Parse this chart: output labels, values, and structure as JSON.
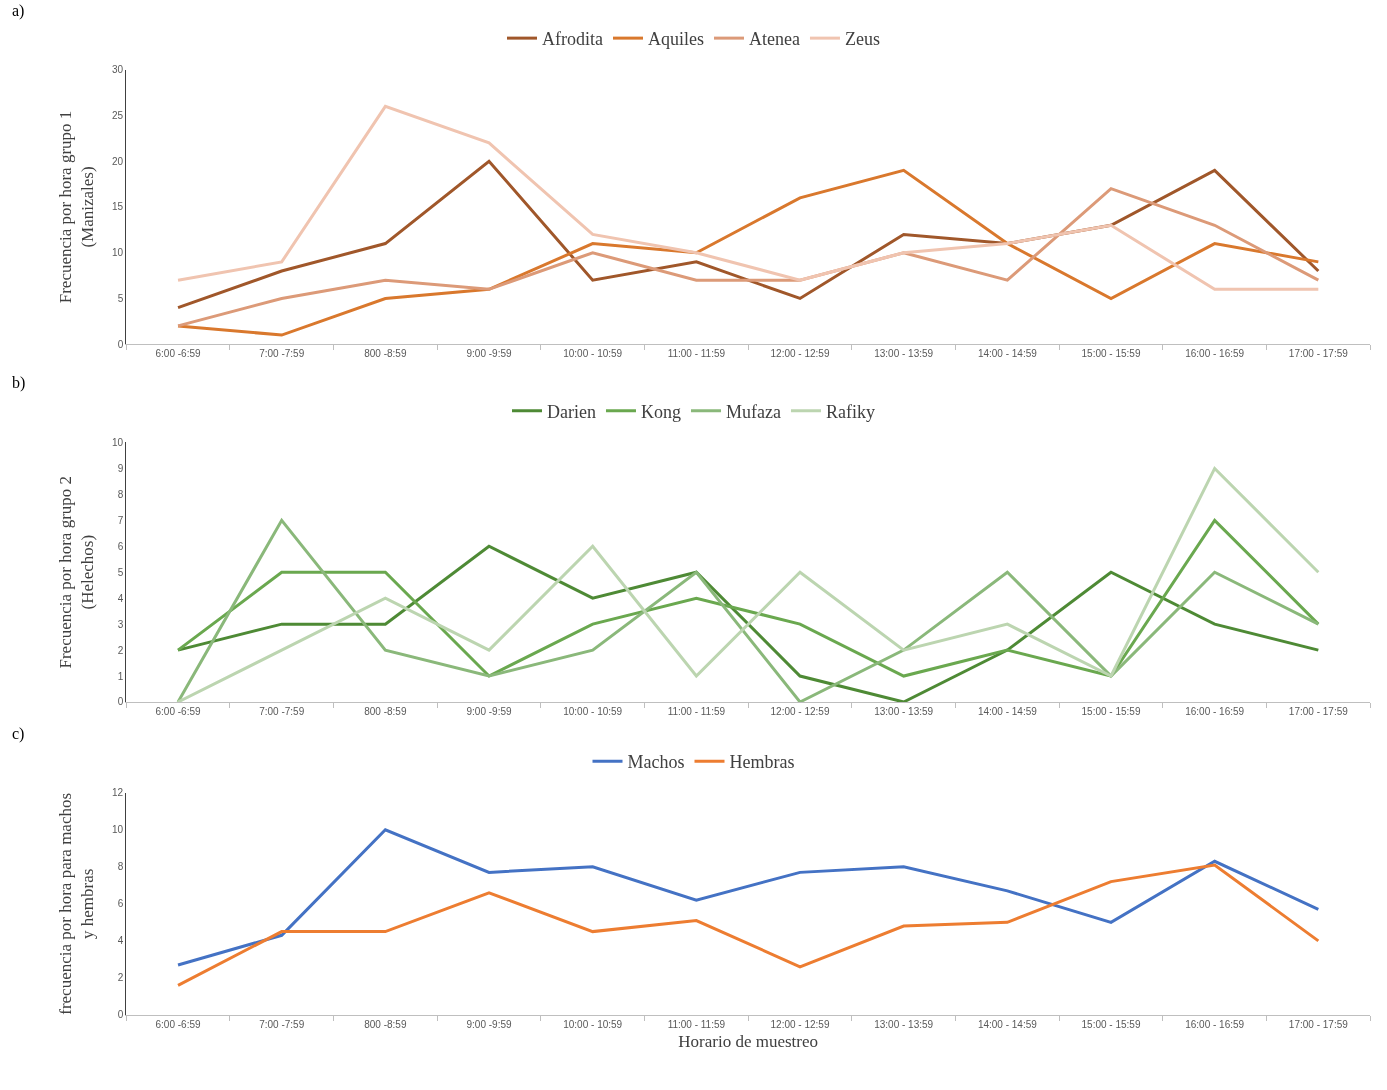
{
  "chart_data": [
    {
      "type": "line",
      "title": "a)",
      "ylabel": "Frecuencia por hora grupo 1\n(Manizales)",
      "legend": "top",
      "grid": false,
      "categories": [
        "6:00 -6:59",
        "7:00 -7:59",
        "800 -8:59",
        "9:00 -9:59",
        "10:00 - 10:59",
        "11:00 - 11:59",
        "12:00 - 12:59",
        "13:00 - 13:59",
        "14:00 - 14:59",
        "15:00 - 15:59",
        "16:00 - 16:59",
        "17:00 - 17:59"
      ],
      "ylim": [
        0,
        30
      ],
      "yticks": [
        0,
        5,
        10,
        15,
        20,
        25,
        30
      ],
      "series": [
        {
          "name": "Afrodita",
          "color": "#a0572a",
          "values": [
            4,
            8,
            11,
            20,
            7,
            9,
            5,
            12,
            11,
            13,
            19,
            8
          ]
        },
        {
          "name": "Aquiles",
          "color": "#d9782d",
          "values": [
            2,
            1,
            5,
            6,
            11,
            10,
            16,
            19,
            11,
            5,
            11,
            9
          ]
        },
        {
          "name": "Atenea",
          "color": "#dc9a78",
          "values": [
            2,
            5,
            7,
            6,
            10,
            7,
            7,
            10,
            7,
            17,
            13,
            7
          ]
        },
        {
          "name": "Zeus",
          "color": "#f0c4b0",
          "values": [
            7,
            9,
            26,
            22,
            12,
            10,
            7,
            10,
            11,
            13,
            6,
            6
          ]
        }
      ]
    },
    {
      "type": "line",
      "title": "b)",
      "ylabel": "Frecuencia por hora grupo 2\n(Helechos)",
      "legend": "top",
      "grid": false,
      "categories": [
        "6:00 -6:59",
        "7:00 -7:59",
        "800 -8:59",
        "9:00 -9:59",
        "10:00 - 10:59",
        "11:00 - 11:59",
        "12:00 - 12:59",
        "13:00 - 13:59",
        "14:00 - 14:59",
        "15:00 - 15:59",
        "16:00 - 16:59",
        "17:00 - 17:59"
      ],
      "ylim": [
        0,
        10
      ],
      "yticks": [
        0,
        1,
        2,
        3,
        4,
        5,
        6,
        7,
        8,
        9,
        10
      ],
      "series": [
        {
          "name": "Darien",
          "color": "#4e8a35",
          "values": [
            2,
            3,
            3,
            6,
            4,
            5,
            1,
            0,
            2,
            5,
            3,
            2
          ]
        },
        {
          "name": "Kong",
          "color": "#6aa84f",
          "values": [
            2,
            5,
            5,
            1,
            3,
            4,
            3,
            1,
            2,
            1,
            7,
            3
          ]
        },
        {
          "name": "Mufaza",
          "color": "#8ab87a",
          "values": [
            0,
            7,
            2,
            1,
            2,
            5,
            0,
            2,
            5,
            1,
            5,
            3
          ]
        },
        {
          "name": "Rafiky",
          "color": "#bcd5b0",
          "values": [
            0,
            2,
            4,
            2,
            6,
            1,
            5,
            2,
            3,
            1,
            9,
            5
          ]
        }
      ]
    },
    {
      "type": "line",
      "title": "c)",
      "ylabel": "frecuencia por hora para machos\ny hembras",
      "xlabel": "Horario de muestreo",
      "legend": "top",
      "grid": false,
      "categories": [
        "6:00 -6:59",
        "7:00 -7:59",
        "800 -8:59",
        "9:00 -9:59",
        "10:00 - 10:59",
        "11:00 - 11:59",
        "12:00 - 12:59",
        "13:00 - 13:59",
        "14:00 - 14:59",
        "15:00 - 15:59",
        "16:00 - 16:59",
        "17:00 - 17:59"
      ],
      "ylim": [
        0,
        12
      ],
      "yticks": [
        0,
        2,
        4,
        6,
        8,
        10,
        12
      ],
      "series": [
        {
          "name": "Machos",
          "color": "#4472c4",
          "values": [
            2.7,
            4.3,
            10,
            7.7,
            8,
            6.2,
            7.7,
            8,
            6.7,
            5,
            8.3,
            5.7
          ]
        },
        {
          "name": "Hembras",
          "color": "#ed7d31",
          "values": [
            1.6,
            4.5,
            4.5,
            6.6,
            4.5,
            5.1,
            2.6,
            4.8,
            5,
            7.2,
            8.1,
            4
          ]
        }
      ]
    }
  ]
}
